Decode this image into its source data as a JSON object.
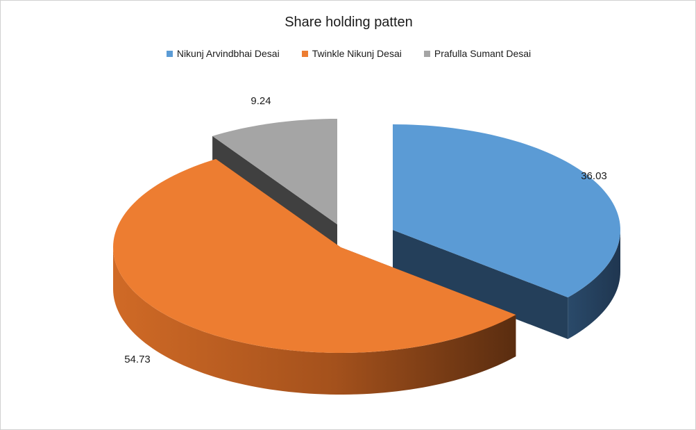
{
  "chart_data": {
    "type": "pie",
    "title": "Share holding patten",
    "legend_position": "top",
    "series": [
      {
        "name": "Nikunj Arvindbhai  Desai",
        "value": 36.03,
        "color": "#5b9bd5",
        "side_color": "#243f5a"
      },
      {
        "name": "Twinkle Nikunj Desai",
        "value": 54.73,
        "color": "#ed7d31",
        "side_color": "#8a4418"
      },
      {
        "name": "Prafulla Sumant  Desai",
        "value": 9.24,
        "color": "#a5a5a5",
        "side_color": "#404040"
      }
    ],
    "data_labels": [
      "36.03",
      "54.73",
      "9.24"
    ]
  }
}
